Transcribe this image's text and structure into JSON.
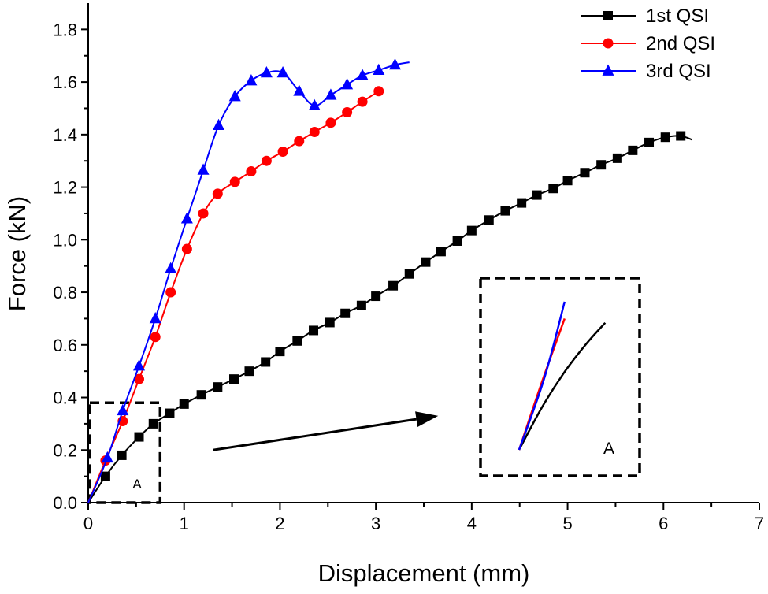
{
  "chart_data": {
    "type": "line",
    "title": "",
    "xlabel": "Displacement (mm)",
    "ylabel": "Force (kN)",
    "xlim": [
      0,
      7
    ],
    "ylim": [
      0,
      1.9
    ],
    "xticks": [
      "0",
      "1",
      "2",
      "3",
      "4",
      "5",
      "6",
      "7"
    ],
    "yticks": [
      "0.0",
      "0.2",
      "0.4",
      "0.6",
      "0.8",
      "1.0",
      "1.2",
      "1.4",
      "1.6",
      "1.8"
    ],
    "legend_position": "top-right",
    "grid": false,
    "series": [
      {
        "name": "1st QSI",
        "color": "#000000",
        "marker": "square",
        "x": [
          0.0,
          0.18,
          0.35,
          0.53,
          0.68,
          0.85,
          1.0,
          1.18,
          1.35,
          1.52,
          1.68,
          1.85,
          2.0,
          2.18,
          2.35,
          2.52,
          2.68,
          2.85,
          3.0,
          3.18,
          3.35,
          3.52,
          3.68,
          3.85,
          4.0,
          4.18,
          4.35,
          4.52,
          4.68,
          4.85,
          5.0,
          5.18,
          5.35,
          5.52,
          5.68,
          5.85,
          6.02,
          6.18,
          6.3
        ],
        "y": [
          0.0,
          0.1,
          0.18,
          0.25,
          0.3,
          0.34,
          0.375,
          0.41,
          0.44,
          0.47,
          0.5,
          0.535,
          0.575,
          0.615,
          0.655,
          0.685,
          0.72,
          0.75,
          0.785,
          0.825,
          0.87,
          0.915,
          0.955,
          0.995,
          1.035,
          1.075,
          1.11,
          1.14,
          1.17,
          1.195,
          1.225,
          1.255,
          1.285,
          1.31,
          1.34,
          1.37,
          1.39,
          1.395,
          1.38
        ],
        "marker_indices": [
          1,
          2,
          3,
          4,
          5,
          6,
          7,
          8,
          9,
          10,
          11,
          12,
          13,
          14,
          15,
          16,
          17,
          18,
          19,
          20,
          21,
          22,
          23,
          24,
          25,
          26,
          27,
          28,
          29,
          30,
          31,
          32,
          33,
          34,
          35,
          36,
          37
        ]
      },
      {
        "name": "2nd QSI",
        "color": "#ff0000",
        "marker": "circle",
        "x": [
          0.0,
          0.18,
          0.36,
          0.53,
          0.7,
          0.86,
          1.03,
          1.2,
          1.35,
          1.53,
          1.7,
          1.86,
          2.03,
          2.2,
          2.36,
          2.53,
          2.7,
          2.86,
          3.03
        ],
        "y": [
          0.0,
          0.16,
          0.31,
          0.47,
          0.63,
          0.8,
          0.965,
          1.1,
          1.175,
          1.22,
          1.26,
          1.3,
          1.335,
          1.375,
          1.41,
          1.445,
          1.485,
          1.525,
          1.565
        ],
        "marker_indices": [
          1,
          2,
          3,
          4,
          5,
          6,
          7,
          8,
          9,
          10,
          11,
          12,
          13,
          14,
          15,
          16,
          17,
          18
        ]
      },
      {
        "name": "3rd QSI",
        "color": "#0000ff",
        "marker": "triangle",
        "x": [
          0.0,
          0.2,
          0.36,
          0.53,
          0.7,
          0.86,
          1.03,
          1.2,
          1.36,
          1.53,
          1.7,
          1.86,
          2.03,
          2.2,
          2.36,
          2.53,
          2.7,
          2.86,
          3.03,
          3.2,
          3.35
        ],
        "y": [
          0.0,
          0.17,
          0.35,
          0.52,
          0.7,
          0.89,
          1.08,
          1.265,
          1.435,
          1.545,
          1.605,
          1.635,
          1.635,
          1.565,
          1.51,
          1.55,
          1.59,
          1.625,
          1.645,
          1.665,
          1.675
        ],
        "marker_indices": [
          1,
          2,
          3,
          4,
          5,
          6,
          7,
          8,
          9,
          10,
          11,
          12,
          13,
          14,
          15,
          16,
          17,
          18,
          19
        ]
      }
    ],
    "annotations": [
      {
        "type": "dashed-box",
        "label": "A",
        "x_range": [
          0,
          0.75
        ],
        "y_range": [
          0,
          0.38
        ]
      },
      {
        "type": "arrow",
        "from": [
          1.3,
          0.2
        ],
        "to": [
          3.65,
          0.33
        ]
      },
      {
        "type": "inset",
        "label": "A",
        "description": "zoomed view of region A",
        "lines": [
          {
            "series": "1st QSI",
            "color": "#000000"
          },
          {
            "series": "2nd QSI",
            "color": "#ff0000"
          },
          {
            "series": "3rd QSI",
            "color": "#0000ff"
          }
        ]
      }
    ]
  }
}
